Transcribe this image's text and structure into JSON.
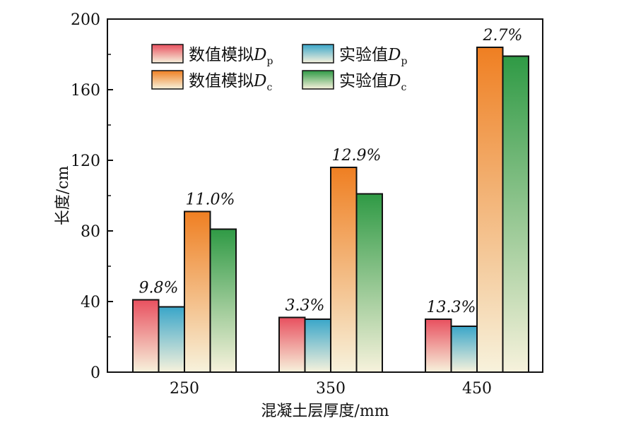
{
  "chart_data": {
    "type": "bar",
    "title": "",
    "xlabel": "混凝土层厚度/mm",
    "ylabel": "长度/cm",
    "categories": [
      "250",
      "350",
      "450"
    ],
    "ylim": [
      0,
      200
    ],
    "yticks": [
      "0",
      "40",
      "80",
      "120",
      "160",
      "200"
    ],
    "grid": false,
    "legend_position": "top-left",
    "series": [
      {
        "name": "数值模拟D",
        "subscript": "p",
        "values": [
          41,
          31,
          30
        ],
        "color_top": "#e8505f",
        "color_bottom": "#f7f2dc"
      },
      {
        "name": "实验值D",
        "subscript": "p",
        "values": [
          37,
          30,
          26
        ],
        "color_top": "#3aa6c9",
        "color_bottom": "#f7f2dc"
      },
      {
        "name": "数值模拟D",
        "subscript": "c",
        "values": [
          91,
          116,
          184
        ],
        "color_top": "#ef7f22",
        "color_bottom": "#f7f2dc"
      },
      {
        "name": "实验值D",
        "subscript": "c",
        "values": [
          81,
          101,
          179
        ],
        "color_top": "#2f9a45",
        "color_bottom": "#f7f2dc"
      }
    ],
    "annotations": [
      {
        "category": "250",
        "over_series": 0,
        "text": "9.8%"
      },
      {
        "category": "250",
        "over_series": 2,
        "text": "11.0%"
      },
      {
        "category": "350",
        "over_series": 0,
        "text": "3.3%"
      },
      {
        "category": "350",
        "over_series": 2,
        "text": "12.9%"
      },
      {
        "category": "450",
        "over_series": 0,
        "text": "13.3%"
      },
      {
        "category": "450",
        "over_series": 2,
        "text": "2.7%"
      }
    ]
  }
}
